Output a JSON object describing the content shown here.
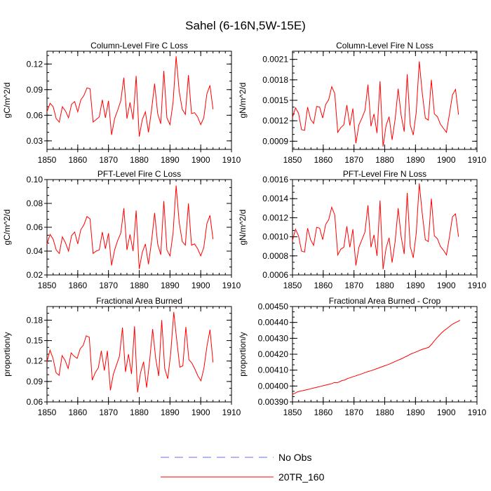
{
  "figure": {
    "title": "Sahel (6-16N,5W-15E)",
    "series_color": "#ff0000",
    "obs_color": "#6a6aff"
  },
  "legend": {
    "entries": [
      {
        "label": "No Obs",
        "style": "dashed",
        "color": "#6a6aff"
      },
      {
        "label": "20TR_160",
        "style": "solid",
        "color": "#ff0000"
      }
    ]
  },
  "chart_data": [
    {
      "type": "line",
      "title": "Column-Level Fire C Loss",
      "ylabel": "gC/m^2/d",
      "xlabel": "",
      "xlim": [
        1850,
        1910
      ],
      "ylim": [
        0.02,
        0.135
      ],
      "xticks": [
        "1850",
        "1860",
        "1870",
        "1880",
        "1890",
        "1900",
        "1910"
      ],
      "yticks": [
        "0.03",
        "0.06",
        "0.09",
        "0.12"
      ],
      "series": [
        {
          "name": "20TR_160",
          "values": [
            0.064,
            0.074,
            0.07,
            0.056,
            0.052,
            0.07,
            0.065,
            0.057,
            0.073,
            0.076,
            0.064,
            0.078,
            0.083,
            0.092,
            0.091,
            0.052,
            0.055,
            0.058,
            0.078,
            0.057,
            0.077,
            0.037,
            0.056,
            0.066,
            0.077,
            0.104,
            0.056,
            0.075,
            0.055,
            0.106,
            0.035,
            0.055,
            0.064,
            0.04,
            0.066,
            0.097,
            0.062,
            0.05,
            0.112,
            0.057,
            0.049,
            0.075,
            0.129,
            0.088,
            0.067,
            0.061,
            0.107,
            0.062,
            0.063,
            0.058,
            0.049,
            0.057,
            0.085,
            0.095,
            0.067
          ]
        }
      ]
    },
    {
      "type": "line",
      "title": "Column-Level Fire N Loss",
      "ylabel": "gN/m^2/d",
      "xlabel": "",
      "xlim": [
        1850,
        1910
      ],
      "ylim": [
        0.00078,
        0.00222
      ],
      "xticks": [
        "1850",
        "1860",
        "1870",
        "1880",
        "1890",
        "1900",
        "1910"
      ],
      "yticks": [
        "0.0009",
        "0.0012",
        "0.0015",
        "0.0018",
        "0.0021"
      ],
      "series": [
        {
          "name": "20TR_160",
          "values": [
            0.00125,
            0.00139,
            0.00131,
            0.00107,
            0.00106,
            0.0014,
            0.00122,
            0.00116,
            0.00141,
            0.0014,
            0.00124,
            0.00144,
            0.00151,
            0.0017,
            0.0016,
            0.00103,
            0.0011,
            0.00114,
            0.00143,
            0.00113,
            0.00138,
            0.00087,
            0.00114,
            0.00124,
            0.00135,
            0.00173,
            0.00112,
            0.0013,
            0.00102,
            0.00178,
            0.00082,
            0.00113,
            0.00126,
            0.00092,
            0.00122,
            0.00167,
            0.00128,
            0.00104,
            0.00188,
            0.00114,
            0.00099,
            0.00133,
            0.00207,
            0.0016,
            0.00124,
            0.00121,
            0.0018,
            0.0013,
            0.00126,
            0.00115,
            0.00109,
            0.00103,
            0.0013,
            0.00158,
            0.00166,
            0.00129
          ]
        }
      ]
    },
    {
      "type": "line",
      "title": "PFT-Level Fire C Loss",
      "ylabel": "gC/m^2/d",
      "xlabel": "",
      "xlim": [
        1850,
        1910
      ],
      "ylim": [
        0.02,
        0.1
      ],
      "xticks": [
        "1850",
        "1860",
        "1870",
        "1880",
        "1890",
        "1900",
        "1910"
      ],
      "yticks": [
        "0.02",
        "0.04",
        "0.06",
        "0.08",
        "0.10"
      ],
      "series": [
        {
          "name": "20TR_160",
          "values": [
            0.046,
            0.054,
            0.05,
            0.041,
            0.038,
            0.052,
            0.047,
            0.04,
            0.053,
            0.056,
            0.046,
            0.058,
            0.062,
            0.069,
            0.067,
            0.038,
            0.04,
            0.041,
            0.056,
            0.042,
            0.055,
            0.028,
            0.041,
            0.049,
            0.055,
            0.076,
            0.041,
            0.054,
            0.04,
            0.074,
            0.025,
            0.039,
            0.046,
            0.029,
            0.048,
            0.072,
            0.046,
            0.037,
            0.082,
            0.041,
            0.036,
            0.055,
            0.095,
            0.064,
            0.048,
            0.045,
            0.08,
            0.045,
            0.046,
            0.042,
            0.036,
            0.043,
            0.063,
            0.07,
            0.05
          ]
        }
      ]
    },
    {
      "type": "line",
      "title": "PFT-Level Fire N Loss",
      "ylabel": "gN/m^2/d",
      "xlabel": "",
      "xlim": [
        1850,
        1910
      ],
      "ylim": [
        0.0006,
        0.0016
      ],
      "xticks": [
        "1850",
        "1860",
        "1870",
        "1880",
        "1890",
        "1900",
        "1910"
      ],
      "yticks": [
        "0.0006",
        "0.0008",
        "0.0010",
        "0.0012",
        "0.0014",
        "0.0016"
      ],
      "series": [
        {
          "name": "20TR_160",
          "values": [
            0.00096,
            0.00108,
            0.00101,
            0.00085,
            0.00084,
            0.00109,
            0.00097,
            0.00091,
            0.0011,
            0.00109,
            0.00097,
            0.00113,
            0.00118,
            0.00131,
            0.00123,
            0.00081,
            0.00087,
            0.00089,
            0.00111,
            0.00089,
            0.00108,
            0.0007,
            0.00089,
            0.00097,
            0.00105,
            0.00133,
            0.00089,
            0.00102,
            0.0008,
            0.00138,
            0.00066,
            0.00088,
            0.00099,
            0.00073,
            0.00095,
            0.0013,
            0.001,
            0.00082,
            0.00146,
            0.0009,
            0.00078,
            0.00104,
            0.00156,
            0.00124,
            0.00097,
            0.00095,
            0.0014,
            0.00101,
            0.00098,
            0.0009,
            0.00086,
            0.00081,
            0.001,
            0.00121,
            0.00124,
            0.001
          ]
        }
      ]
    },
    {
      "type": "line",
      "title": "Fractional Area Burned",
      "ylabel": "proportion/y",
      "xlabel": "",
      "xlim": [
        1850,
        1910
      ],
      "ylim": [
        0.06,
        0.2
      ],
      "xticks": [
        "1850",
        "1860",
        "1870",
        "1880",
        "1890",
        "1900",
        "1910"
      ],
      "yticks": [
        "0.06",
        "0.09",
        "0.12",
        "0.15",
        "0.18"
      ],
      "series": [
        {
          "name": "20TR_160",
          "values": [
            0.119,
            0.136,
            0.124,
            0.103,
            0.099,
            0.128,
            0.121,
            0.109,
            0.132,
            0.127,
            0.124,
            0.138,
            0.143,
            0.157,
            0.155,
            0.092,
            0.103,
            0.11,
            0.135,
            0.106,
            0.135,
            0.077,
            0.101,
            0.114,
            0.127,
            0.169,
            0.104,
            0.13,
            0.101,
            0.171,
            0.074,
            0.103,
            0.119,
            0.081,
            0.12,
            0.167,
            0.124,
            0.098,
            0.18,
            0.109,
            0.094,
            0.132,
            0.192,
            0.15,
            0.111,
            0.113,
            0.17,
            0.122,
            0.117,
            0.108,
            0.098,
            0.091,
            0.11,
            0.142,
            0.166,
            0.118
          ]
        }
      ]
    },
    {
      "type": "line",
      "title": "Fractional Area Burned - Crop",
      "ylabel": "proportion/y",
      "xlabel": "",
      "xlim": [
        1850,
        1910
      ],
      "ylim": [
        0.0039,
        0.0045
      ],
      "xticks": [
        "1850",
        "1860",
        "1870",
        "1880",
        "1890",
        "1900",
        "1910"
      ],
      "yticks": [
        "0.00390",
        "0.00400",
        "0.00410",
        "0.00420",
        "0.00430",
        "0.00440",
        "0.00450"
      ],
      "series": [
        {
          "name": "20TR_160",
          "values": [
            0.003948,
            0.003955,
            0.003964,
            0.003968,
            0.003971,
            0.003975,
            0.003979,
            0.003983,
            0.003987,
            0.003991,
            0.003995,
            0.003999,
            0.004003,
            0.004007,
            0.004011,
            0.004015,
            0.004022,
            0.00402,
            0.004027,
            0.004035,
            0.004038,
            0.004047,
            0.004052,
            0.004058,
            0.004063,
            0.004069,
            0.004074,
            0.00408,
            0.004086,
            0.004092,
            0.004096,
            0.004102,
            0.004108,
            0.004114,
            0.00412,
            0.004126,
            0.004132,
            0.004138,
            0.004145,
            0.004153,
            0.00416,
            0.004167,
            0.004174,
            0.004183,
            0.00419,
            0.0042,
            0.004207,
            0.004213,
            0.00422,
            0.004227,
            0.004233,
            0.004238,
            0.004243,
            0.00426,
            0.004281,
            0.0043,
            0.004318,
            0.004335,
            0.00435,
            0.004362,
            0.004375,
            0.004388,
            0.004397,
            0.004405,
            0.004413
          ]
        }
      ]
    }
  ]
}
